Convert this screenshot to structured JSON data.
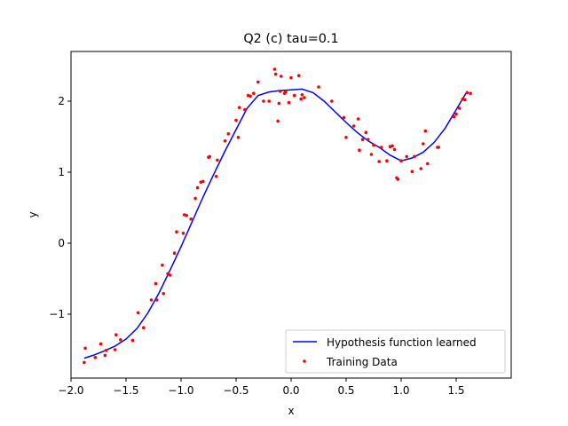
{
  "chart_data": {
    "type": "scatter",
    "title": "Q2 (c)  tau=0.1",
    "xlabel": "x",
    "ylabel": "y",
    "xlim": [
      -2.0,
      2.0
    ],
    "ylim": [
      -1.9,
      2.7
    ],
    "xticks": [
      -2.0,
      -1.5,
      -1.0,
      -0.5,
      0.0,
      0.5,
      1.0,
      1.5
    ],
    "xtick_labels": [
      "−2.0",
      "−1.5",
      "−1.0",
      "−0.5",
      "0.0",
      "0.5",
      "1.0",
      "1.5"
    ],
    "yticks": [
      -1,
      0,
      1,
      2
    ],
    "ytick_labels": [
      "−1",
      "0",
      "1",
      "2"
    ],
    "grid": false,
    "legend_position": "lower-right",
    "colors": {
      "line": "#0000ff",
      "points": "#ff0000"
    },
    "series": [
      {
        "name": "Hypothesis function learned",
        "kind": "line",
        "x": [
          -1.88,
          -1.8,
          -1.7,
          -1.6,
          -1.5,
          -1.4,
          -1.3,
          -1.2,
          -1.1,
          -1.0,
          -0.9,
          -0.8,
          -0.7,
          -0.6,
          -0.5,
          -0.4,
          -0.3,
          -0.2,
          -0.1,
          0.0,
          0.1,
          0.2,
          0.3,
          0.4,
          0.5,
          0.6,
          0.7,
          0.8,
          0.9,
          1.0,
          1.1,
          1.2,
          1.3,
          1.4,
          1.5,
          1.6
        ],
        "y": [
          -1.62,
          -1.58,
          -1.52,
          -1.45,
          -1.35,
          -1.2,
          -0.98,
          -0.7,
          -0.38,
          -0.05,
          0.3,
          0.65,
          0.98,
          1.3,
          1.6,
          1.9,
          2.08,
          2.13,
          2.15,
          2.16,
          2.17,
          2.12,
          2.0,
          1.85,
          1.7,
          1.56,
          1.44,
          1.35,
          1.24,
          1.16,
          1.2,
          1.28,
          1.42,
          1.62,
          1.88,
          2.14
        ]
      },
      {
        "name": "Training Data",
        "kind": "scatter",
        "x": [
          -1.88,
          -1.87,
          -1.78,
          -1.73,
          -1.69,
          -1.68,
          -1.6,
          -1.59,
          -1.55,
          -1.44,
          -1.39,
          -1.34,
          -1.27,
          -1.23,
          -1.22,
          -1.17,
          -1.16,
          -1.12,
          -1.1,
          -1.06,
          -1.04,
          -0.98,
          -0.97,
          -0.95,
          -0.91,
          -0.87,
          -0.85,
          -0.82,
          -0.8,
          -0.75,
          -0.74,
          -0.68,
          -0.67,
          -0.6,
          -0.57,
          -0.5,
          -0.48,
          -0.47,
          -0.42,
          -0.39,
          -0.37,
          -0.34,
          -0.3,
          -0.25,
          -0.2,
          -0.15,
          -0.14,
          -0.12,
          -0.11,
          -0.1,
          -0.09,
          -0.06,
          -0.05,
          -0.02,
          0.0,
          0.03,
          0.07,
          0.09,
          0.1,
          0.12,
          0.25,
          0.37,
          0.48,
          0.5,
          0.57,
          0.61,
          0.62,
          0.65,
          0.68,
          0.7,
          0.73,
          0.75,
          0.8,
          0.82,
          0.87,
          0.9,
          0.92,
          0.94,
          0.96,
          0.97,
          1.0,
          1.05,
          1.1,
          1.12,
          1.18,
          1.2,
          1.22,
          1.24,
          1.33,
          1.34,
          1.48,
          1.5,
          1.53,
          1.56,
          1.58,
          1.6,
          1.63
        ],
        "y": [
          -1.68,
          -1.48,
          -1.61,
          -1.42,
          -1.58,
          -1.51,
          -1.5,
          -1.29,
          -1.36,
          -1.37,
          -0.98,
          -1.19,
          -0.8,
          -0.57,
          -0.8,
          -0.31,
          -0.71,
          -0.43,
          -0.45,
          -0.14,
          0.16,
          0.14,
          0.4,
          0.39,
          0.34,
          0.63,
          0.78,
          0.86,
          0.87,
          1.21,
          1.22,
          0.94,
          1.17,
          1.44,
          1.54,
          1.73,
          1.49,
          1.91,
          1.88,
          2.08,
          2.07,
          2.11,
          2.27,
          2.0,
          2.0,
          2.45,
          2.38,
          1.72,
          1.97,
          2.14,
          2.35,
          2.11,
          2.13,
          1.98,
          2.33,
          2.08,
          2.36,
          2.03,
          2.09,
          2.05,
          2.2,
          2.0,
          1.77,
          1.49,
          1.65,
          1.75,
          1.31,
          1.46,
          1.56,
          1.46,
          1.25,
          1.38,
          1.15,
          1.35,
          1.16,
          1.36,
          1.37,
          1.32,
          0.92,
          0.9,
          1.16,
          1.22,
          1.01,
          1.22,
          1.05,
          1.4,
          1.58,
          1.12,
          1.35,
          1.35,
          1.78,
          1.82,
          1.9,
          2.03,
          2.02,
          2.12,
          2.11
        ]
      }
    ]
  }
}
